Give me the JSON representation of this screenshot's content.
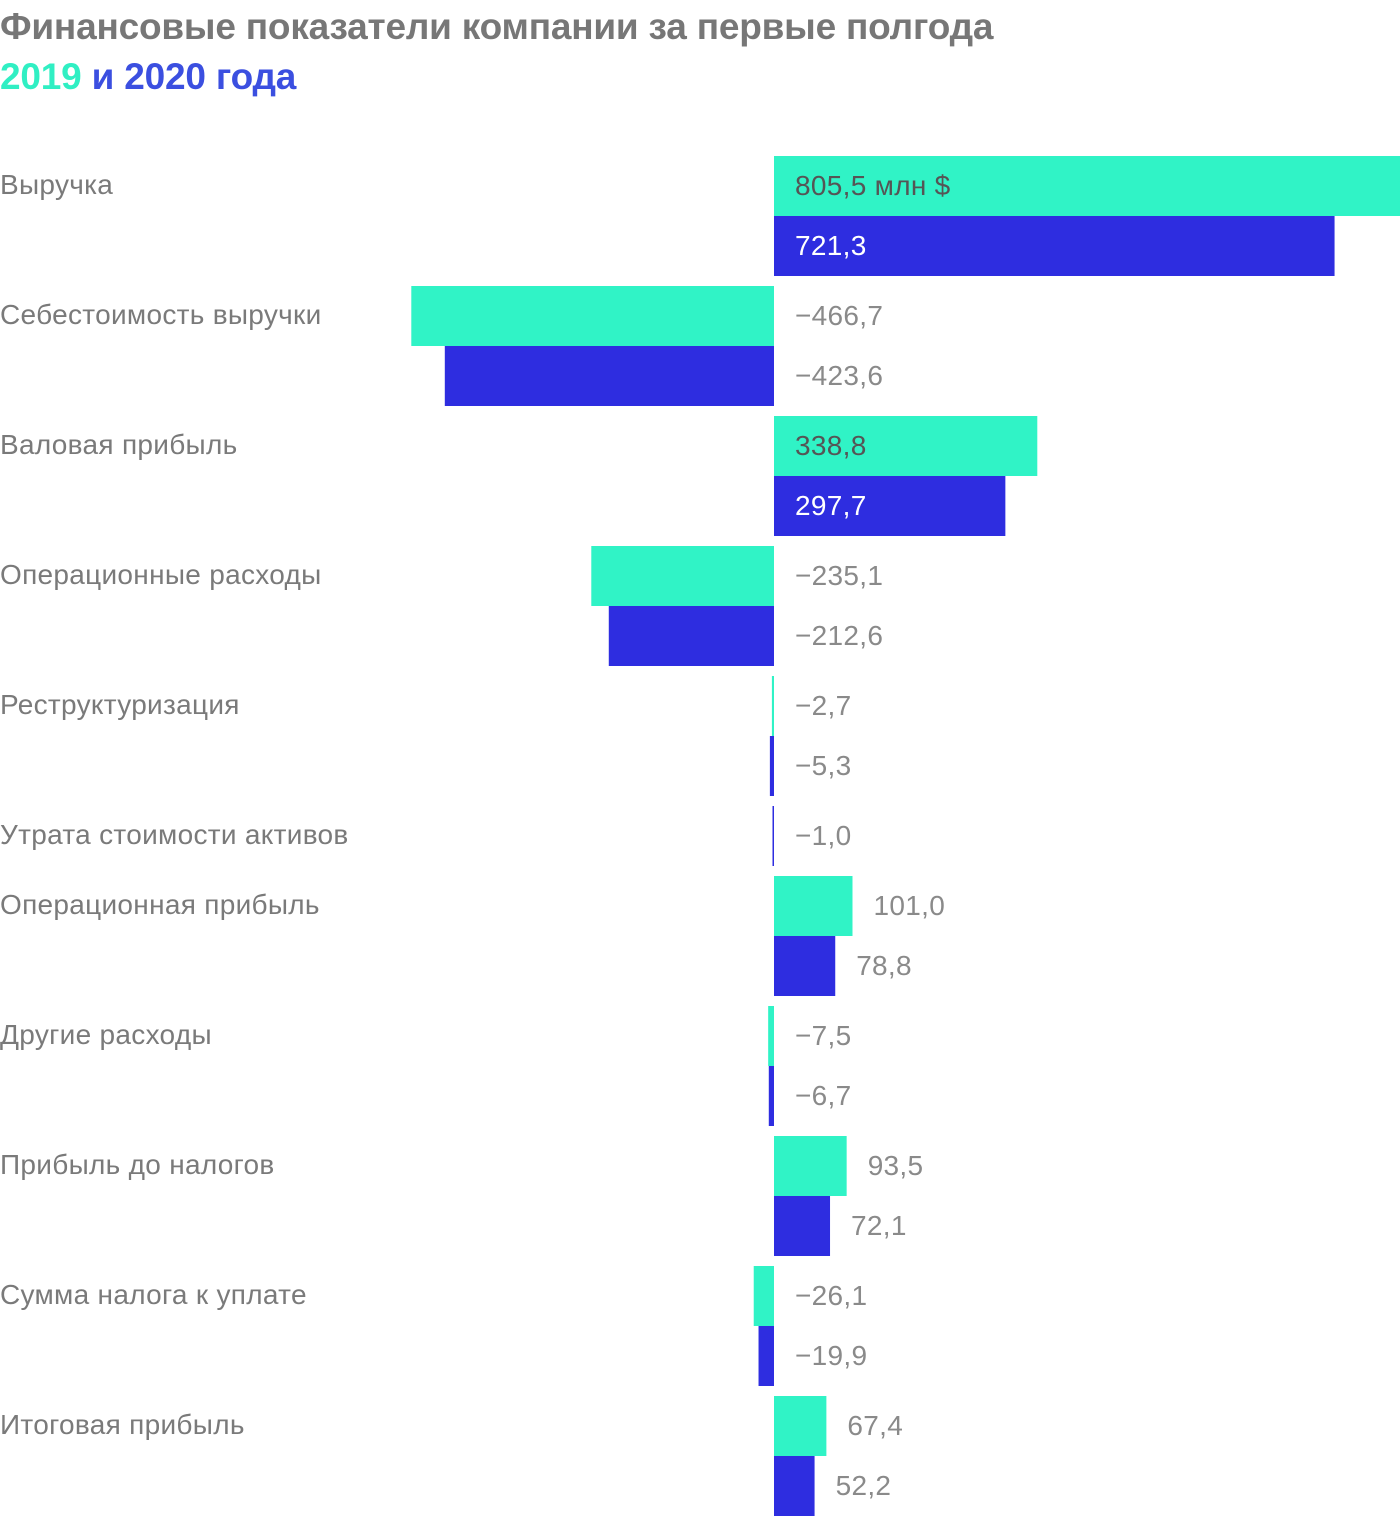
{
  "title": {
    "line1": "Финансовые показатели компании за первые полгода",
    "year1": "2019",
    "connector": "и",
    "year2": "2020 года"
  },
  "colors": {
    "series_2019": "#30f3c6",
    "series_2020": "#2e2de0",
    "label_on_bar_2019": "#555555",
    "label_on_bar_2020": "#ffffff",
    "label_outside": "#8a8a8a"
  },
  "chart_data": {
    "type": "bar",
    "orientation": "horizontal",
    "title": "Финансовые показатели компании за первые полгода 2019 и 2020 года",
    "unit": "млн $",
    "categories": [
      "Выручка",
      "Себестоимость выручки",
      "Валовая прибыль",
      "Операционные расходы",
      "Реструктуризация",
      "Утрата стоимости активов",
      "Операционная прибыль",
      "Другие расходы",
      "Прибыль до налогов",
      "Сумма налога к уплате",
      "Итоговая прибыль"
    ],
    "series": [
      {
        "name": "2019",
        "values": [
          805.5,
          -466.7,
          338.8,
          -235.1,
          -2.7,
          null,
          101.0,
          -7.5,
          93.5,
          -26.1,
          67.4
        ],
        "labels": [
          "805,5 млн $",
          "−466,7",
          "338,8",
          "−235,1",
          "−2,7",
          null,
          "101,0",
          "−7,5",
          "93,5",
          "−26,1",
          "67,4"
        ]
      },
      {
        "name": "2020",
        "values": [
          721.3,
          -423.6,
          297.7,
          -212.6,
          -5.3,
          -1.0,
          78.8,
          -6.7,
          72.1,
          -19.9,
          52.2
        ],
        "labels": [
          "721,3",
          "−423,6",
          "297,7",
          "−212,6",
          "−5,3",
          "−1,0",
          "78,8",
          "−6,7",
          "72,1",
          "−19,9",
          "52,2"
        ]
      }
    ],
    "grid": false,
    "legend": "title"
  }
}
